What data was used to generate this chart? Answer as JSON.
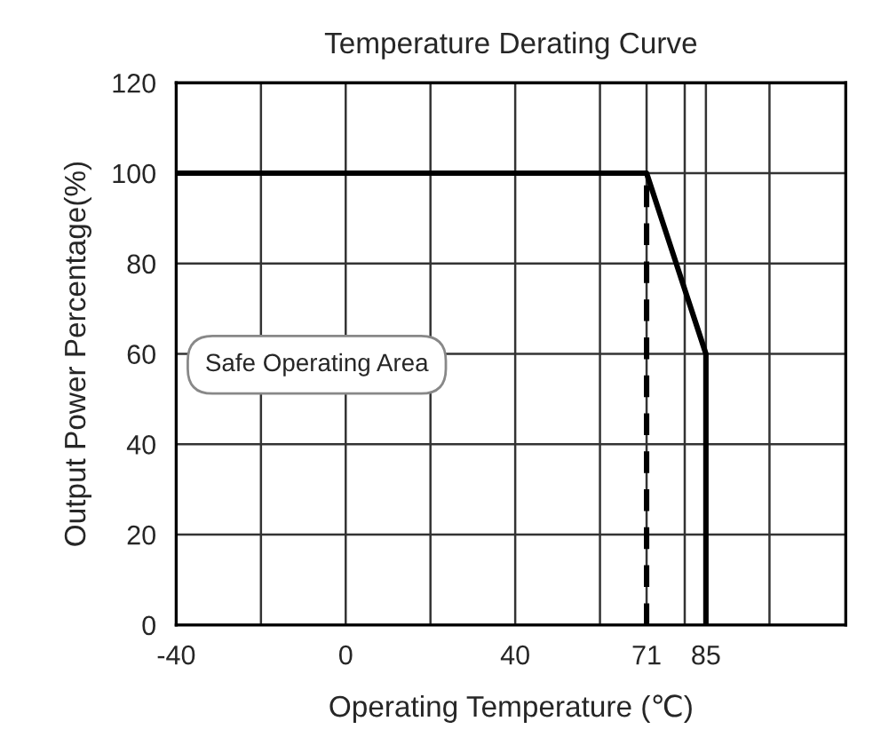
{
  "chart_data": {
    "type": "line",
    "title": "Temperature Derating Curve",
    "xlabel": "Operating Temperature (℃)",
    "ylabel": "Output Power Percentage(%)",
    "series": [
      {
        "color": "#000000",
        "x": [
          -40,
          71,
          85,
          85
        ],
        "values": [
          100,
          100,
          60,
          0
        ],
        "line_style": "solid"
      },
      {
        "color": "#000000",
        "x": [
          71,
          71
        ],
        "values": [
          0,
          100
        ],
        "line_style": "dashed"
      }
    ],
    "xlim": [
      -40,
      118
    ],
    "ylim": [
      0,
      120
    ],
    "xticks": [
      -40,
      {
        "value": -20,
        "label": null
      },
      0,
      {
        "value": 20,
        "label": null
      },
      40,
      {
        "value": 60,
        "label": null
      },
      71,
      {
        "value": 80,
        "label": null
      },
      85,
      {
        "value": 100,
        "label": null
      }
    ],
    "yticks": [
      0,
      20,
      40,
      60,
      80,
      100,
      120
    ],
    "grid": true,
    "marker": "none",
    "annotations": [
      "Safe Operating Area"
    ]
  }
}
